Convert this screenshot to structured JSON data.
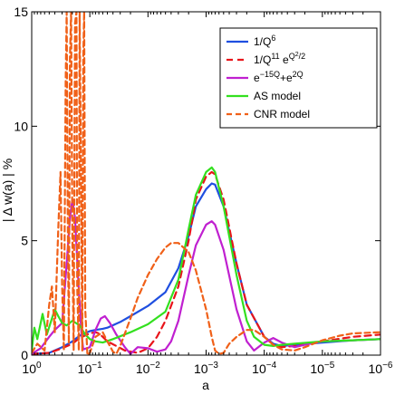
{
  "chart_data": {
    "type": "line",
    "xlabel": "a",
    "ylabel": "| Δ w(a) | %",
    "xscale": "log",
    "x_reversed": true,
    "xlim": [
      1,
      1e-06
    ],
    "ylim": [
      0,
      15
    ],
    "grid": false,
    "legend_position": "top-right",
    "x_ticks": [
      {
        "value": 1,
        "base": "10",
        "exp": "0"
      },
      {
        "value": 0.1,
        "base": "10",
        "exp": "−1"
      },
      {
        "value": 0.01,
        "base": "10",
        "exp": "−2"
      },
      {
        "value": 0.001,
        "base": "10",
        "exp": "−3"
      },
      {
        "value": 0.0001,
        "base": "10",
        "exp": "−4"
      },
      {
        "value": 1e-05,
        "base": "10",
        "exp": "−5"
      },
      {
        "value": 1e-06,
        "base": "10",
        "exp": "−6"
      }
    ],
    "y_ticks": [
      {
        "value": 0,
        "label": "0"
      },
      {
        "value": 5,
        "label": "5"
      },
      {
        "value": 10,
        "label": "10"
      },
      {
        "value": 15,
        "label": "15"
      }
    ],
    "series": [
      {
        "name": "1/Q^6",
        "legend": [
          {
            "t": "1/Q"
          },
          {
            "t": "6",
            "sup": true
          }
        ],
        "color": "#1f4fe0",
        "dash": "solid",
        "width": 2.2,
        "points": [
          [
            1,
            0.05
          ],
          [
            0.5,
            0.1
          ],
          [
            0.3,
            0.35
          ],
          [
            0.2,
            0.6
          ],
          [
            0.15,
            0.85
          ],
          [
            0.1,
            1.05
          ],
          [
            0.08,
            1.1
          ],
          [
            0.06,
            1.15
          ],
          [
            0.05,
            1.2
          ],
          [
            0.03,
            1.45
          ],
          [
            0.02,
            1.7
          ],
          [
            0.01,
            2.15
          ],
          [
            0.005,
            2.75
          ],
          [
            0.003,
            3.8
          ],
          [
            0.002,
            5.2
          ],
          [
            0.0015,
            6.5
          ],
          [
            0.001,
            7.25
          ],
          [
            0.0008,
            7.5
          ],
          [
            0.0007,
            7.45
          ],
          [
            0.0005,
            6.5
          ],
          [
            0.0003,
            4.0
          ],
          [
            0.0002,
            2.2
          ],
          [
            0.0001,
            0.8
          ],
          [
            7e-05,
            0.5
          ],
          [
            5e-05,
            0.4
          ],
          [
            3e-05,
            0.45
          ],
          [
            1e-05,
            0.55
          ],
          [
            3e-06,
            0.65
          ],
          [
            1e-06,
            0.7
          ]
        ]
      },
      {
        "name": "1/Q^11 e^{Q^2/2}",
        "legend": [
          {
            "t": "1/Q"
          },
          {
            "t": "11",
            "sup": true
          },
          {
            "t": " e"
          },
          {
            "t": "Q",
            "sup": true
          },
          {
            "t": "2",
            "sup2": true
          },
          {
            "t": "/2",
            "sup": true
          }
        ],
        "color": "#e8141a",
        "dash": "7,5",
        "width": 2.2,
        "points": [
          [
            1,
            0.05
          ],
          [
            0.5,
            0.1
          ],
          [
            0.3,
            0.3
          ],
          [
            0.2,
            0.5
          ],
          [
            0.15,
            0.75
          ],
          [
            0.1,
            0.95
          ],
          [
            0.08,
            1.0
          ],
          [
            0.07,
            0.95
          ],
          [
            0.06,
            0.8
          ],
          [
            0.05,
            0.6
          ],
          [
            0.035,
            0.4
          ],
          [
            0.025,
            0.2
          ],
          [
            0.015,
            0.1
          ],
          [
            0.01,
            0.3
          ],
          [
            0.007,
            0.8
          ],
          [
            0.005,
            1.5
          ],
          [
            0.003,
            3.0
          ],
          [
            0.002,
            5.0
          ],
          [
            0.0015,
            6.8
          ],
          [
            0.001,
            7.8
          ],
          [
            0.0008,
            8.0
          ],
          [
            0.0007,
            7.9
          ],
          [
            0.0005,
            6.8
          ],
          [
            0.0003,
            4.0
          ],
          [
            0.0002,
            2.2
          ],
          [
            0.0001,
            0.8
          ],
          [
            7e-05,
            0.45
          ],
          [
            5e-05,
            0.35
          ],
          [
            3e-05,
            0.4
          ],
          [
            1e-05,
            0.6
          ],
          [
            3e-06,
            0.8
          ],
          [
            1e-06,
            0.9
          ]
        ]
      },
      {
        "name": "e^{-15Q}+e^{2Q}",
        "legend": [
          {
            "t": "e"
          },
          {
            "t": "−15Q",
            "sup": true
          },
          {
            "t": "+e"
          },
          {
            "t": "2Q",
            "sup": true
          }
        ],
        "color": "#c020d0",
        "dash": "solid",
        "width": 2.2,
        "points": [
          [
            1,
            0.05
          ],
          [
            0.7,
            0.3
          ],
          [
            0.5,
            0.8
          ],
          [
            0.4,
            1.1
          ],
          [
            0.3,
            1.4
          ],
          [
            0.25,
            4.0
          ],
          [
            0.22,
            6.0
          ],
          [
            0.2,
            6.8
          ],
          [
            0.18,
            6.0
          ],
          [
            0.16,
            3.5
          ],
          [
            0.14,
            1.0
          ],
          [
            0.13,
            0.25
          ],
          [
            0.1,
            0.35
          ],
          [
            0.08,
            1.1
          ],
          [
            0.065,
            1.6
          ],
          [
            0.055,
            1.7
          ],
          [
            0.045,
            1.4
          ],
          [
            0.035,
            0.9
          ],
          [
            0.025,
            0.35
          ],
          [
            0.02,
            0.05
          ],
          [
            0.015,
            0.35
          ],
          [
            0.01,
            0.3
          ],
          [
            0.007,
            0.15
          ],
          [
            0.005,
            0.25
          ],
          [
            0.004,
            0.6
          ],
          [
            0.003,
            1.5
          ],
          [
            0.002,
            3.5
          ],
          [
            0.0015,
            4.8
          ],
          [
            0.001,
            5.7
          ],
          [
            0.0008,
            5.85
          ],
          [
            0.0007,
            5.7
          ],
          [
            0.0005,
            4.6
          ],
          [
            0.0003,
            2.0
          ],
          [
            0.0002,
            0.6
          ],
          [
            0.00015,
            0.2
          ],
          [
            0.0001,
            0.55
          ],
          [
            7e-05,
            0.75
          ],
          [
            5e-05,
            0.55
          ],
          [
            3e-05,
            0.35
          ],
          [
            2e-05,
            0.45
          ],
          [
            1e-05,
            0.6
          ],
          [
            3e-06,
            0.65
          ],
          [
            1e-06,
            0.7
          ]
        ]
      },
      {
        "name": "AS model",
        "legend": [
          {
            "t": "AS model"
          }
        ],
        "color": "#33e01f",
        "dash": "solid",
        "width": 2.2,
        "points": [
          [
            1,
            0.2
          ],
          [
            0.9,
            1.2
          ],
          [
            0.8,
            0.7
          ],
          [
            0.65,
            1.8
          ],
          [
            0.55,
            0.9
          ],
          [
            0.45,
            1.6
          ],
          [
            0.4,
            2.0
          ],
          [
            0.35,
            1.7
          ],
          [
            0.3,
            1.4
          ],
          [
            0.25,
            1.3
          ],
          [
            0.2,
            1.5
          ],
          [
            0.15,
            1.3
          ],
          [
            0.12,
            0.9
          ],
          [
            0.1,
            0.7
          ],
          [
            0.08,
            0.6
          ],
          [
            0.06,
            0.55
          ],
          [
            0.04,
            0.7
          ],
          [
            0.02,
            1.0
          ],
          [
            0.01,
            1.35
          ],
          [
            0.005,
            1.9
          ],
          [
            0.003,
            3.3
          ],
          [
            0.002,
            5.5
          ],
          [
            0.0015,
            7.0
          ],
          [
            0.001,
            8.0
          ],
          [
            0.0008,
            8.2
          ],
          [
            0.0007,
            8.0
          ],
          [
            0.0005,
            6.5
          ],
          [
            0.0003,
            3.5
          ],
          [
            0.0002,
            1.5
          ],
          [
            0.00015,
            0.8
          ],
          [
            0.0001,
            0.45
          ],
          [
            7e-05,
            0.4
          ],
          [
            5e-05,
            0.45
          ],
          [
            3e-05,
            0.5
          ],
          [
            1e-05,
            0.6
          ],
          [
            3e-06,
            0.65
          ],
          [
            1e-06,
            0.7
          ]
        ]
      },
      {
        "name": "CNR model",
        "legend": [
          {
            "t": "CNR model"
          }
        ],
        "color": "#f06018",
        "dash": "6,4",
        "width": 2.2,
        "points": [
          [
            1,
            0.1
          ],
          [
            0.8,
            0.5
          ],
          [
            0.6,
            0.2
          ],
          [
            0.5,
            2.2
          ],
          [
            0.45,
            3.0
          ],
          [
            0.4,
            1.0
          ],
          [
            0.35,
            5.5
          ],
          [
            0.32,
            8.0
          ],
          [
            0.3,
            3.0
          ],
          [
            0.28,
            0.2
          ],
          [
            0.26,
            12.0
          ],
          [
            0.25,
            15.0
          ],
          [
            0.24,
            6.0
          ],
          [
            0.23,
            0.5
          ],
          [
            0.22,
            13.0
          ],
          [
            0.21,
            15.0
          ],
          [
            0.2,
            5.0
          ],
          [
            0.19,
            0.2
          ],
          [
            0.18,
            14.5
          ],
          [
            0.17,
            15.0
          ],
          [
            0.165,
            3.0
          ],
          [
            0.155,
            0.2
          ],
          [
            0.15,
            15.0
          ],
          [
            0.14,
            6.0
          ],
          [
            0.135,
            0.2
          ],
          [
            0.13,
            13.0
          ],
          [
            0.125,
            15.0
          ],
          [
            0.12,
            2.0
          ],
          [
            0.11,
            0.0
          ],
          [
            0.1,
            0.1
          ],
          [
            0.08,
            0.8
          ],
          [
            0.06,
            1.0
          ],
          [
            0.05,
            0.6
          ],
          [
            0.04,
            0.15
          ],
          [
            0.035,
            0.05
          ],
          [
            0.03,
            0.4
          ],
          [
            0.02,
            1.6
          ],
          [
            0.015,
            2.5
          ],
          [
            0.01,
            3.5
          ],
          [
            0.007,
            4.2
          ],
          [
            0.005,
            4.7
          ],
          [
            0.004,
            4.9
          ],
          [
            0.003,
            4.9
          ],
          [
            0.002,
            4.5
          ],
          [
            0.0015,
            3.7
          ],
          [
            0.001,
            2.0
          ],
          [
            0.0008,
            0.8
          ],
          [
            0.0007,
            0.2
          ],
          [
            0.0006,
            0.05
          ],
          [
            0.0005,
            0.1
          ],
          [
            0.0004,
            0.5
          ],
          [
            0.0003,
            0.8
          ],
          [
            0.0002,
            1.1
          ],
          [
            0.00015,
            1.1
          ],
          [
            0.0001,
            0.8
          ],
          [
            7e-05,
            0.45
          ],
          [
            5e-05,
            0.25
          ],
          [
            3e-05,
            0.2
          ],
          [
            2e-05,
            0.35
          ],
          [
            1e-05,
            0.65
          ],
          [
            5e-06,
            0.85
          ],
          [
            3e-06,
            0.95
          ],
          [
            1e-06,
            1.0
          ]
        ]
      }
    ]
  }
}
